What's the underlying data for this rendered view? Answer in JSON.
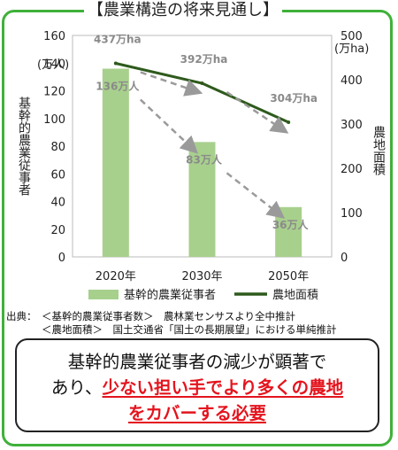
{
  "title": "【農業構造の将来見通し】",
  "chart_data": {
    "type": "bar+line",
    "categories": [
      "2020年",
      "2030年",
      "2050年"
    ],
    "series": [
      {
        "name": "基幹的農業従事者",
        "type": "bar",
        "axis": "left",
        "color": "#a8d08d",
        "values": [
          136,
          83,
          36
        ],
        "labels": [
          "136万人",
          "83万人",
          "36万人"
        ]
      },
      {
        "name": "農地面積",
        "type": "line",
        "axis": "right",
        "color": "#2e5a1c",
        "values": [
          437,
          392,
          304
        ],
        "labels": [
          "437万ha",
          "392万ha",
          "304万ha"
        ]
      }
    ],
    "y_left": {
      "label": "基幹的農業従事者",
      "unit": "(万人)",
      "min": 0,
      "max": 160,
      "ticks": [
        0,
        20,
        40,
        60,
        80,
        100,
        120,
        140,
        160
      ]
    },
    "y_right": {
      "label": "農地面積",
      "unit": "(万ha)",
      "min": 0,
      "max": 500,
      "ticks": [
        0,
        100,
        200,
        300,
        400,
        500
      ]
    },
    "trend_arrows": "dashed gray arrows between consecutive values",
    "legend_position": "bottom"
  },
  "source": {
    "label": "出典：",
    "line1": "＜基幹的農業従事者数＞　農林業センサスより全中推計",
    "line2": "＜農地面積＞　国土交通省「国土の長期展望」における単純推計"
  },
  "message": {
    "line1": "基幹的農業従事者の減少が顕著で",
    "line2_plain": "あり、",
    "line2_red": "少ない担い手でより多くの農地",
    "line3_red": "をカバーする必要"
  },
  "colors": {
    "frame": "#3fb13a",
    "bar": "#a8d08d",
    "line": "#2e5a1c",
    "arrow": "#9a9a9a",
    "emphasis": "#e4141e"
  }
}
